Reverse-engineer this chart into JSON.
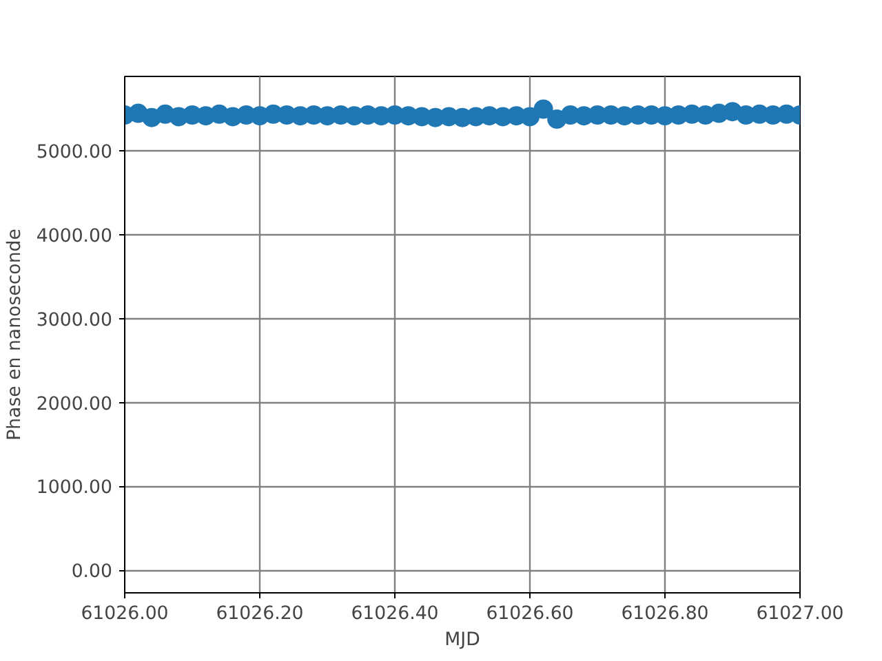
{
  "chart_data": {
    "type": "scatter",
    "xlabel": "MJD",
    "ylabel": "Phase en nanoseconde",
    "marker": "circle",
    "grid": true,
    "x": [
      61026.0,
      61026.02,
      61026.04,
      61026.06,
      61026.08,
      61026.1,
      61026.12,
      61026.14,
      61026.16,
      61026.18,
      61026.2,
      61026.22,
      61026.24,
      61026.26,
      61026.28,
      61026.3,
      61026.32,
      61026.34,
      61026.36,
      61026.38,
      61026.4,
      61026.42,
      61026.44,
      61026.46,
      61026.48,
      61026.5,
      61026.52,
      61026.54,
      61026.56,
      61026.58,
      61026.6,
      61026.62,
      61026.64,
      61026.66,
      61026.68,
      61026.7,
      61026.72,
      61026.74,
      61026.76,
      61026.78,
      61026.8,
      61026.82,
      61026.84,
      61026.86,
      61026.88,
      61026.9,
      61026.92,
      61026.94,
      61026.96,
      61026.98,
      61027.0
    ],
    "series": [
      {
        "color": "#1f77b4",
        "values": [
          5430,
          5450,
          5400,
          5440,
          5410,
          5430,
          5420,
          5440,
          5410,
          5430,
          5420,
          5440,
          5430,
          5420,
          5430,
          5420,
          5430,
          5420,
          5430,
          5420,
          5430,
          5420,
          5410,
          5400,
          5410,
          5400,
          5410,
          5420,
          5410,
          5420,
          5410,
          5500,
          5380,
          5430,
          5420,
          5430,
          5430,
          5420,
          5430,
          5430,
          5420,
          5430,
          5440,
          5430,
          5450,
          5470,
          5430,
          5440,
          5430,
          5440,
          5430
        ]
      }
    ],
    "xlim": [
      61026.0,
      61027.0
    ],
    "ylim": [
      -270,
      5890
    ],
    "xticks": [
      {
        "value": 61026.0,
        "label": "61026.00"
      },
      {
        "value": 61026.2,
        "label": "61026.20"
      },
      {
        "value": 61026.4,
        "label": "61026.40"
      },
      {
        "value": 61026.6,
        "label": "61026.60"
      },
      {
        "value": 61026.8,
        "label": "61026.80"
      },
      {
        "value": 61027.0,
        "label": "61027.00"
      }
    ],
    "yticks": [
      {
        "value": 0,
        "label": "0.00"
      },
      {
        "value": 1000,
        "label": "1000.00"
      },
      {
        "value": 2000,
        "label": "2000.00"
      },
      {
        "value": 3000,
        "label": "3000.00"
      },
      {
        "value": 4000,
        "label": "4000.00"
      },
      {
        "value": 5000,
        "label": "5000.00"
      }
    ]
  }
}
